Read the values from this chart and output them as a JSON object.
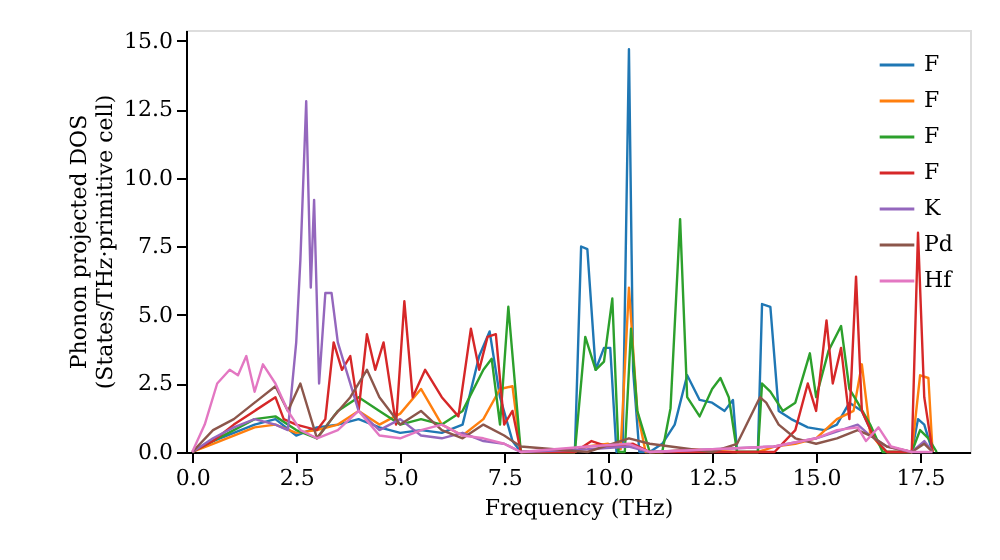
{
  "chart_data": {
    "type": "line",
    "xlabel": "Frequency (THz)",
    "ylabel": "Phonon projected DOS\n(States/THz·primitive cell)",
    "xlim": [
      -0.15,
      18.7
    ],
    "ylim": [
      0,
      15.4
    ],
    "xticks": [
      {
        "value": 0,
        "label": "0.0"
      },
      {
        "value": 2.5,
        "label": "2.5"
      },
      {
        "value": 5,
        "label": "5.0"
      },
      {
        "value": 7.5,
        "label": "7.5"
      },
      {
        "value": 10,
        "label": "10.0"
      },
      {
        "value": 12.5,
        "label": "12.5"
      },
      {
        "value": 15,
        "label": "15.0"
      },
      {
        "value": 17.5,
        "label": "17.5"
      }
    ],
    "yticks": [
      {
        "value": 0,
        "label": "0.0"
      },
      {
        "value": 2.5,
        "label": "2.5"
      },
      {
        "value": 5,
        "label": "5.0"
      },
      {
        "value": 7.5,
        "label": "7.5"
      },
      {
        "value": 10,
        "label": "10.0"
      },
      {
        "value": 12.5,
        "label": "12.5"
      },
      {
        "value": 15,
        "label": "15.0"
      }
    ],
    "grid": false,
    "legend": "top right",
    "line_style": "solid",
    "marker": "none",
    "series": [
      {
        "name": "F",
        "color": "#1f77b4",
        "x": [
          0,
          0.5,
          1,
          1.5,
          2,
          2.5,
          3,
          3.5,
          4,
          4.5,
          5,
          5.5,
          6,
          6.5,
          6.9,
          7.15,
          7.4,
          7.7,
          7.9,
          9.2,
          9.35,
          9.5,
          9.7,
          9.9,
          10.05,
          10.2,
          10.35,
          10.5,
          10.6,
          10.75,
          11.0,
          11.3,
          11.6,
          11.9,
          12.2,
          12.5,
          12.8,
          13.0,
          13.1,
          13.6,
          13.7,
          13.9,
          14.1,
          14.4,
          14.8,
          15.2,
          15.5,
          15.8,
          16.1,
          16.4,
          16.7,
          17.3,
          17.45,
          17.6,
          17.8
        ],
        "values": [
          0,
          0.4,
          0.7,
          1.0,
          1.2,
          0.6,
          0.9,
          1.0,
          1.2,
          0.9,
          0.7,
          0.8,
          0.7,
          1.0,
          3.5,
          4.4,
          2.0,
          0.4,
          0,
          0,
          7.5,
          7.4,
          3.0,
          3.8,
          3.8,
          0,
          0.3,
          14.7,
          3.0,
          0,
          0,
          0.3,
          1.0,
          2.8,
          1.9,
          1.8,
          1.5,
          1.9,
          0,
          0,
          5.4,
          5.3,
          1.5,
          1.2,
          0.9,
          0.8,
          1.0,
          1.8,
          1.5,
          0.5,
          0,
          0,
          1.2,
          1.0,
          0
        ]
      },
      {
        "name": "F",
        "color": "#ff7f0e",
        "x": [
          0,
          0.5,
          1,
          1.5,
          2,
          2.5,
          3,
          3.5,
          4,
          4.5,
          5,
          5.5,
          6,
          6.5,
          7,
          7.4,
          7.7,
          7.9,
          9.2,
          9.5,
          10.0,
          10.3,
          10.5,
          10.7,
          10.9,
          11.3,
          12,
          13,
          13.6,
          14,
          14.5,
          15,
          15.5,
          15.9,
          16.1,
          16.3,
          16.5,
          16.7,
          17.3,
          17.5,
          17.7,
          17.8
        ],
        "values": [
          0,
          0.3,
          0.6,
          0.9,
          1.0,
          0.7,
          0.8,
          1.0,
          1.5,
          1.0,
          1.4,
          2.3,
          1.0,
          0.6,
          1.2,
          2.3,
          2.4,
          0,
          0,
          0.2,
          0.3,
          0.1,
          6.0,
          1.5,
          0,
          0,
          0.1,
          0,
          0,
          0.2,
          0.3,
          0.5,
          1.2,
          1.5,
          3.2,
          0.7,
          0.3,
          0,
          0,
          2.8,
          2.7,
          0
        ]
      },
      {
        "name": "F",
        "color": "#2ca02c",
        "x": [
          0,
          0.5,
          1,
          1.5,
          2,
          2.5,
          3,
          3.5,
          4,
          4.5,
          5,
          5.5,
          6,
          6.5,
          7,
          7.2,
          7.4,
          7.6,
          7.9,
          9.2,
          9.45,
          9.7,
          9.9,
          10.1,
          10.25,
          10.4,
          10.55,
          10.7,
          11.0,
          11.3,
          11.5,
          11.73,
          11.9,
          12.2,
          12.5,
          12.7,
          12.9,
          13.1,
          13.6,
          13.7,
          13.9,
          14.2,
          14.5,
          14.85,
          15.0,
          15.3,
          15.6,
          15.8,
          16.0,
          16.3,
          16.6,
          17.3,
          17.5,
          17.7,
          17.9
        ],
        "values": [
          0,
          0.4,
          0.8,
          1.2,
          1.3,
          0.8,
          0.5,
          1.5,
          2.0,
          1.5,
          1.0,
          1.2,
          1.0,
          1.5,
          3.0,
          3.4,
          1.0,
          5.3,
          0,
          0,
          4.2,
          3.0,
          3.3,
          5.6,
          0,
          0,
          4.5,
          1.5,
          0,
          0,
          1.6,
          8.5,
          2.0,
          1.3,
          2.3,
          2.7,
          2.0,
          0,
          0,
          2.5,
          2.2,
          1.5,
          1.8,
          3.6,
          2.0,
          3.7,
          4.6,
          2.3,
          1.8,
          1.0,
          0,
          0,
          0.8,
          0.5,
          0
        ]
      },
      {
        "name": "F",
        "color": "#d62728",
        "x": [
          0,
          0.5,
          1,
          1.5,
          2,
          2.2,
          2.5,
          3,
          3.2,
          3.4,
          3.6,
          3.8,
          4.0,
          4.2,
          4.4,
          4.6,
          4.9,
          5.1,
          5.3,
          5.6,
          6.0,
          6.4,
          6.7,
          6.9,
          7.1,
          7.3,
          7.5,
          7.7,
          7.9,
          9.2,
          9.6,
          10.0,
          10.6,
          11.0,
          12,
          13,
          13.6,
          14,
          14.5,
          14.8,
          15.0,
          15.25,
          15.4,
          15.6,
          15.8,
          15.96,
          16.1,
          16.4,
          16.7,
          17.3,
          17.45,
          17.6,
          17.8
        ],
        "values": [
          0,
          0.4,
          1.0,
          1.5,
          2.0,
          1.2,
          1.0,
          0.8,
          1.2,
          4.0,
          3.0,
          3.5,
          1.5,
          4.3,
          3.0,
          4.0,
          1.0,
          5.5,
          2.0,
          3.0,
          2.0,
          1.3,
          4.5,
          3.0,
          4.2,
          4.3,
          1.0,
          1.5,
          0,
          0,
          0.4,
          0.2,
          0.3,
          0,
          0,
          0,
          0,
          0,
          0.8,
          2.5,
          1.5,
          4.8,
          2.5,
          3.8,
          1.2,
          6.4,
          1.5,
          0.5,
          0,
          0,
          8.0,
          2.0,
          0
        ]
      },
      {
        "name": "K",
        "color": "#9467bd",
        "x": [
          0,
          0.5,
          1,
          1.5,
          2,
          2.3,
          2.5,
          2.6,
          2.74,
          2.85,
          2.93,
          3.05,
          3.2,
          3.35,
          3.5,
          3.7,
          4,
          4.5,
          5,
          5.5,
          6,
          6.5,
          7,
          7.5,
          7.9,
          9.5,
          10.5,
          11,
          14,
          15,
          16,
          16.3,
          16.7,
          17.3,
          17.6,
          17.8
        ],
        "values": [
          0,
          0.5,
          0.9,
          1.2,
          1.0,
          0.8,
          4.0,
          7.0,
          12.8,
          6.0,
          9.2,
          2.5,
          5.8,
          5.8,
          4.0,
          3.0,
          1.5,
          0.8,
          1.2,
          0.6,
          0.5,
          0.7,
          0.4,
          0.3,
          0,
          0.1,
          0.2,
          0,
          0.2,
          0.5,
          1.0,
          0.6,
          0.2,
          0,
          0.4,
          0
        ]
      },
      {
        "name": "Pd",
        "color": "#8c564b",
        "x": [
          0,
          0.5,
          1,
          1.5,
          2,
          2.3,
          2.6,
          3,
          3.4,
          3.8,
          4.2,
          4.5,
          5,
          5.5,
          6,
          6.5,
          7,
          7.5,
          7.9,
          9.5,
          10.5,
          11,
          12.5,
          13.1,
          13.65,
          13.8,
          14.1,
          14.5,
          15,
          15.5,
          16,
          16.3,
          16.7,
          17.3,
          17.6,
          17.8
        ],
        "values": [
          0,
          0.8,
          1.2,
          1.8,
          2.4,
          1.5,
          2.5,
          0.5,
          1.3,
          2.0,
          3.0,
          2.0,
          1.0,
          1.5,
          0.8,
          0.5,
          1.0,
          0.6,
          0.2,
          0,
          0.5,
          0.3,
          0,
          0.3,
          2.0,
          1.8,
          1.0,
          0.5,
          0.3,
          0.5,
          0.8,
          0.6,
          0.2,
          0,
          0.3,
          0
        ]
      },
      {
        "name": "Hf",
        "color": "#e377c2",
        "x": [
          0,
          0.3,
          0.6,
          0.9,
          1.1,
          1.3,
          1.5,
          1.7,
          2.0,
          2.3,
          2.6,
          3,
          3.5,
          4,
          4.5,
          5,
          5.5,
          6,
          6.5,
          7,
          7.5,
          7.9,
          9.5,
          10.5,
          11,
          14,
          15,
          15.5,
          16,
          16.2,
          16.5,
          16.8,
          17.3,
          17.8
        ],
        "values": [
          0,
          1.0,
          2.5,
          3.0,
          2.8,
          3.5,
          2.2,
          3.2,
          2.5,
          1.5,
          0.8,
          0.5,
          0.8,
          1.5,
          0.6,
          0.5,
          0.8,
          1.0,
          0.6,
          0.5,
          0.3,
          0,
          0.2,
          0.3,
          0,
          0.2,
          0.5,
          0.8,
          0.9,
          0.4,
          0.9,
          0.2,
          0,
          0
        ]
      }
    ]
  }
}
